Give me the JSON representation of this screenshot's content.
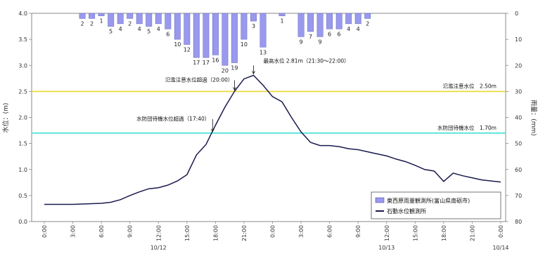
{
  "chart_data": {
    "type": "bar+line",
    "left_axis": {
      "label": "水位：(m)",
      "min": 0.0,
      "max": 4.0,
      "ticks": [
        "0.0",
        "0.5",
        "1.0",
        "1.5",
        "2.0",
        "2.5",
        "3.0",
        "3.5",
        "4.0"
      ]
    },
    "right_axis": {
      "label": "雨量：(mm)",
      "min": 0,
      "max": 80,
      "inverted": true,
      "ticks": [
        "0",
        "10",
        "20",
        "30",
        "40",
        "50",
        "60",
        "70",
        "80"
      ]
    },
    "x_ticks": [
      "0:00",
      "3:00",
      "6:00",
      "9:00",
      "12:00",
      "15:00",
      "18:00",
      "21:00",
      "0:00",
      "3:00",
      "6:00",
      "9:00",
      "12:00",
      "15:00",
      "18:00",
      "21:00",
      "0:00"
    ],
    "date_labels": [
      {
        "label": "10/12",
        "hour": 12
      },
      {
        "label": "10/13",
        "hour": 36
      },
      {
        "label": "10/14",
        "hour": 48
      }
    ],
    "rain": {
      "name": "東西原雨量観測所(富山県南砺市)",
      "color": "#9999ee",
      "unit_hours": 1,
      "values": [
        [
          4,
          2
        ],
        [
          5,
          2
        ],
        [
          6,
          1
        ],
        [
          7,
          5
        ],
        [
          8,
          4
        ],
        [
          9,
          2
        ],
        [
          10,
          4
        ],
        [
          11,
          5
        ],
        [
          12,
          4
        ],
        [
          13,
          6
        ],
        [
          14,
          10
        ],
        [
          15,
          12
        ],
        [
          16,
          17
        ],
        [
          17,
          17
        ],
        [
          18,
          16
        ],
        [
          19,
          20
        ],
        [
          20,
          19
        ],
        [
          21,
          10
        ],
        [
          22,
          3
        ],
        [
          23,
          13
        ],
        [
          25,
          1
        ],
        [
          27,
          9
        ],
        [
          28,
          7
        ],
        [
          29,
          9
        ],
        [
          30,
          6
        ],
        [
          31,
          6
        ],
        [
          32,
          4
        ],
        [
          33,
          4
        ],
        [
          34,
          2
        ]
      ]
    },
    "water_level": {
      "name": "石動水位観測所",
      "color": "#1a1a4e",
      "points": [
        [
          0,
          0.33
        ],
        [
          3,
          0.33
        ],
        [
          4.5,
          0.34
        ],
        [
          6,
          0.35
        ],
        [
          7,
          0.37
        ],
        [
          8,
          0.42
        ],
        [
          9,
          0.5
        ],
        [
          10,
          0.57
        ],
        [
          11,
          0.63
        ],
        [
          12,
          0.65
        ],
        [
          13,
          0.7
        ],
        [
          14,
          0.78
        ],
        [
          15,
          0.9
        ],
        [
          16,
          1.28
        ],
        [
          17,
          1.48
        ],
        [
          18,
          1.85
        ],
        [
          19,
          2.2
        ],
        [
          20,
          2.5
        ],
        [
          21,
          2.74
        ],
        [
          22,
          2.81
        ],
        [
          23,
          2.62
        ],
        [
          24,
          2.4
        ],
        [
          25,
          2.3
        ],
        [
          26,
          2.0
        ],
        [
          27,
          1.72
        ],
        [
          28,
          1.52
        ],
        [
          29,
          1.46
        ],
        [
          30,
          1.46
        ],
        [
          31,
          1.44
        ],
        [
          32,
          1.4
        ],
        [
          33,
          1.38
        ],
        [
          34,
          1.34
        ],
        [
          35,
          1.3
        ],
        [
          36,
          1.26
        ],
        [
          37,
          1.2
        ],
        [
          38,
          1.15
        ],
        [
          39,
          1.08
        ],
        [
          40,
          1.0
        ],
        [
          41,
          0.97
        ],
        [
          42,
          0.77
        ],
        [
          43,
          0.93
        ],
        [
          44,
          0.88
        ],
        [
          45,
          0.84
        ],
        [
          46,
          0.8
        ],
        [
          47,
          0.78
        ],
        [
          48,
          0.76
        ]
      ]
    },
    "thresholds": [
      {
        "label": "氾濫注意水位　2.50m",
        "value": 2.5,
        "color": "#e8d830"
      },
      {
        "label": "水防団待機水位　1.70m",
        "value": 1.7,
        "color": "#40e0d8"
      }
    ],
    "annotations": [
      {
        "text": "最高水位 2.81m（21:30～22:00）",
        "hour": 22,
        "value": 2.81
      },
      {
        "text": "氾濫注意水位超過（20:00）",
        "hour": 20,
        "value": 2.5
      },
      {
        "text": "水防団待機水位超過（17:40）",
        "hour": 17.7,
        "value": 1.7
      }
    ],
    "legend": {
      "position": "bottom-right",
      "items": [
        "東西原雨量観測所(富山県南砺市)",
        "石動水位観測所"
      ]
    },
    "grid": false
  }
}
